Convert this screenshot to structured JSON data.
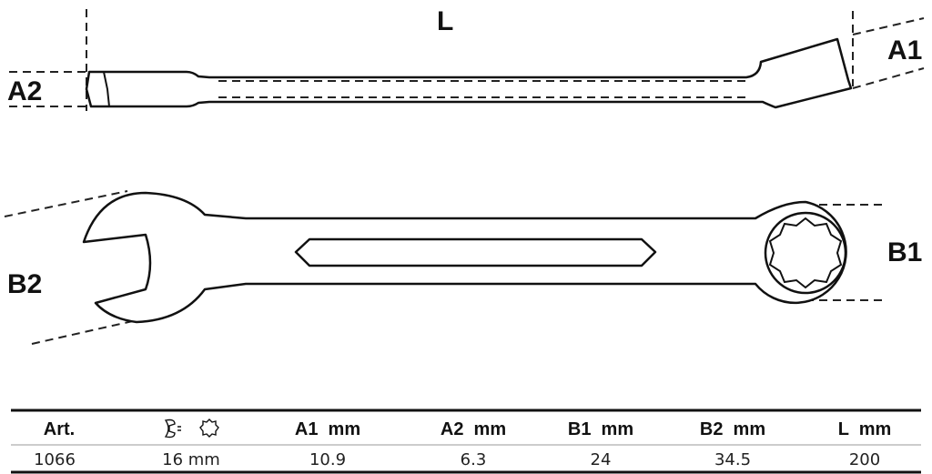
{
  "labels": {
    "L": "L",
    "A1": "A1",
    "A2": "A2",
    "B1": "B1",
    "B2": "B2"
  },
  "table": {
    "headers": [
      "Art.",
      "open-end/ring-icon",
      "A1  mm",
      "A2  mm",
      "B1  mm",
      "B2  mm",
      "L  mm"
    ],
    "row": [
      "1066",
      "16 mm",
      "10.9",
      "6.3",
      "24",
      "34.5",
      "200"
    ]
  }
}
